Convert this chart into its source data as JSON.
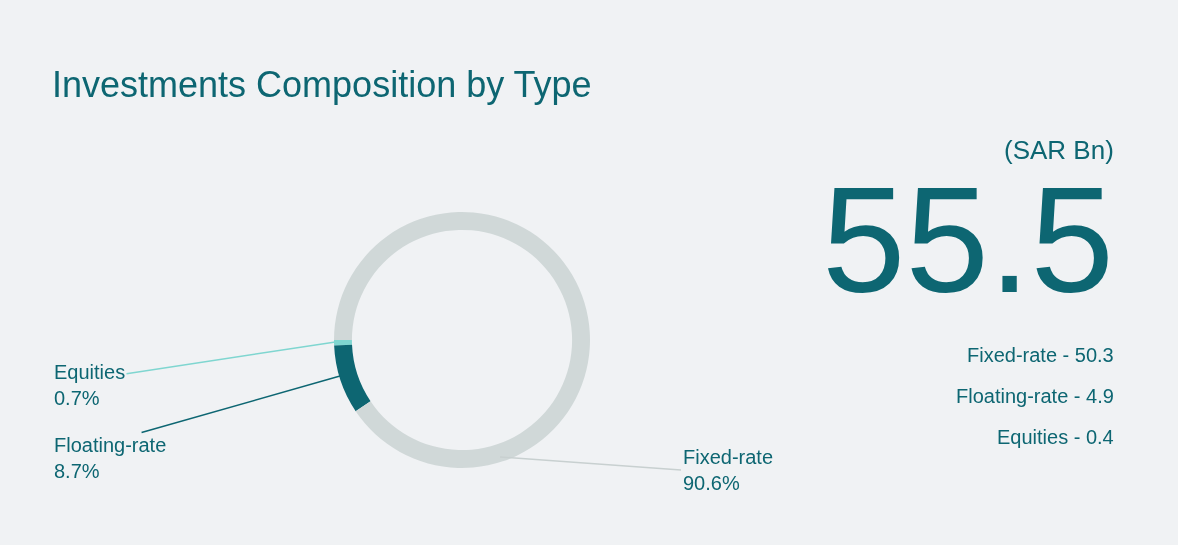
{
  "chart_data": {
    "type": "donut",
    "title": "Investments Composition by Type",
    "categories": [
      "Equities",
      "Floating-rate",
      "Fixed-rate"
    ],
    "values": [
      0.7,
      8.7,
      90.6
    ],
    "value_labels": [
      "0.7%",
      "8.7%",
      "90.6%"
    ],
    "colors": [
      "#7fd6d0",
      "#0d6672",
      "#d0d8d8"
    ],
    "annotations": [
      "(SAR Bn)",
      "55.5",
      "Fixed-rate - 50.3",
      "Floating-rate - 4.9",
      "Equities - 0.4"
    ],
    "legend": false
  }
}
